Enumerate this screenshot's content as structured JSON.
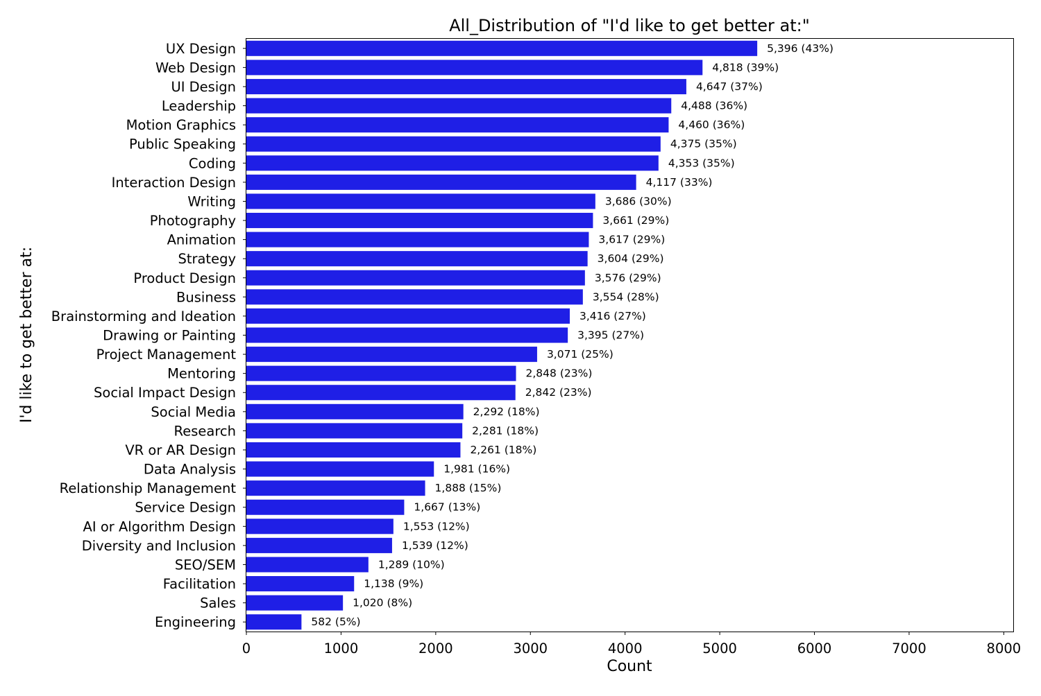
{
  "chart_data": {
    "type": "bar",
    "orientation": "horizontal",
    "title": "All_Distribution of \"I'd like to get better at:\"",
    "xlabel": "Count",
    "ylabel": "I'd like to get better at:",
    "xlim": [
      0,
      8100
    ],
    "x_ticks": [
      0,
      1000,
      2000,
      3000,
      4000,
      5000,
      6000,
      7000,
      8000
    ],
    "grid": false,
    "bar_color": "#1f1fe6",
    "categories": [
      "UX Design",
      "Web Design",
      "UI Design",
      "Leadership",
      "Motion Graphics",
      "Public Speaking",
      "Coding",
      "Interaction Design",
      "Writing",
      "Photography",
      "Animation",
      "Strategy",
      "Product Design",
      "Business",
      "Brainstorming and Ideation",
      "Drawing or Painting",
      "Project Management",
      "Mentoring",
      "Social Impact Design",
      "Social Media",
      "Research",
      "VR or AR Design",
      "Data Analysis",
      "Relationship Management",
      "Service Design",
      "AI or Algorithm Design",
      "Diversity and Inclusion",
      "SEO/SEM",
      "Facilitation",
      "Sales",
      "Engineering"
    ],
    "values": [
      5396,
      4818,
      4647,
      4488,
      4460,
      4375,
      4353,
      4117,
      3686,
      3661,
      3617,
      3604,
      3576,
      3554,
      3416,
      3395,
      3071,
      2848,
      2842,
      2292,
      2281,
      2261,
      1981,
      1888,
      1667,
      1553,
      1539,
      1289,
      1138,
      1020,
      582
    ],
    "data_labels": [
      "5,396 (43%)",
      "4,818 (39%)",
      "4,647 (37%)",
      "4,488 (36%)",
      "4,460 (36%)",
      "4,375 (35%)",
      "4,353 (35%)",
      "4,117 (33%)",
      "3,686 (30%)",
      "3,661 (29%)",
      "3,617 (29%)",
      "3,604 (29%)",
      "3,576 (29%)",
      "3,554 (28%)",
      "3,416 (27%)",
      "3,395 (27%)",
      "3,071 (25%)",
      "2,848 (23%)",
      "2,842 (23%)",
      "2,292 (18%)",
      "2,281 (18%)",
      "2,261 (18%)",
      "1,981 (16%)",
      "1,888 (15%)",
      "1,667 (13%)",
      "1,553 (12%)",
      "1,539 (12%)",
      "1,289 (10%)",
      "1,138 (9%)",
      "1,020 (8%)",
      "582 (5%)"
    ]
  }
}
